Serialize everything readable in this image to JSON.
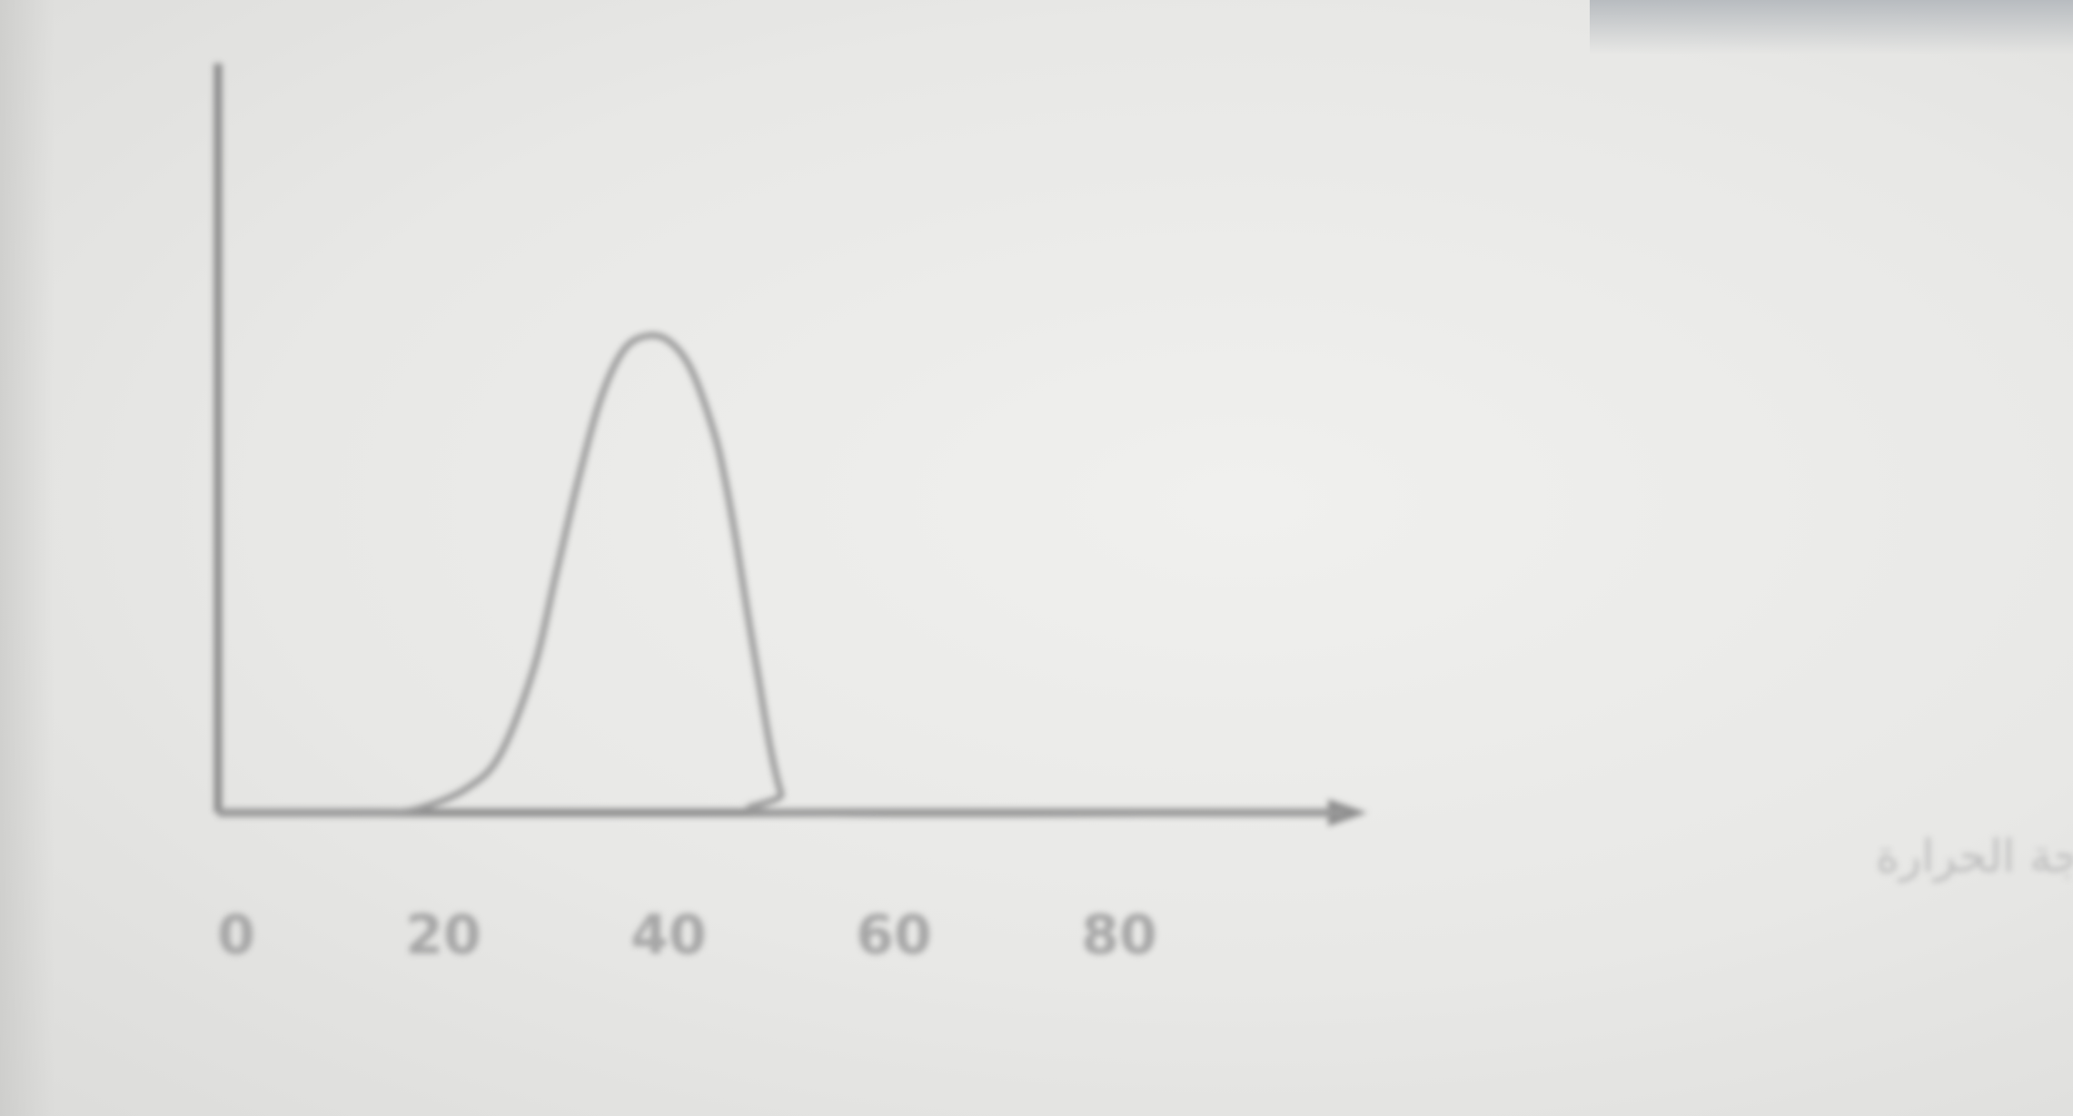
{
  "chart_data": {
    "type": "line",
    "title": "",
    "xlabel": "درجة الحرارة",
    "ylabel": "",
    "xlim": [
      0,
      100
    ],
    "x_ticks": [
      "0",
      "20",
      "40",
      "60",
      "80"
    ],
    "series": [
      {
        "x": [
          0,
          10,
          15,
          18,
          22,
          25,
          28,
          30,
          32,
          34,
          36,
          38,
          40,
          42,
          44,
          45,
          46,
          47,
          48,
          49,
          50,
          51,
          100
        ],
        "y": [
          0,
          0,
          0,
          0.01,
          0.05,
          0.12,
          0.3,
          0.5,
          0.7,
          0.87,
          0.97,
          1.0,
          0.99,
          0.93,
          0.8,
          0.7,
          0.57,
          0.42,
          0.28,
          0.14,
          0.04,
          0,
          0
        ]
      }
    ],
    "ylim": [
      0,
      1.4
    ],
    "colors": {
      "axis": "#8d8d8d",
      "curve": "#9a9a9a",
      "background": "#e8e8e6"
    }
  }
}
